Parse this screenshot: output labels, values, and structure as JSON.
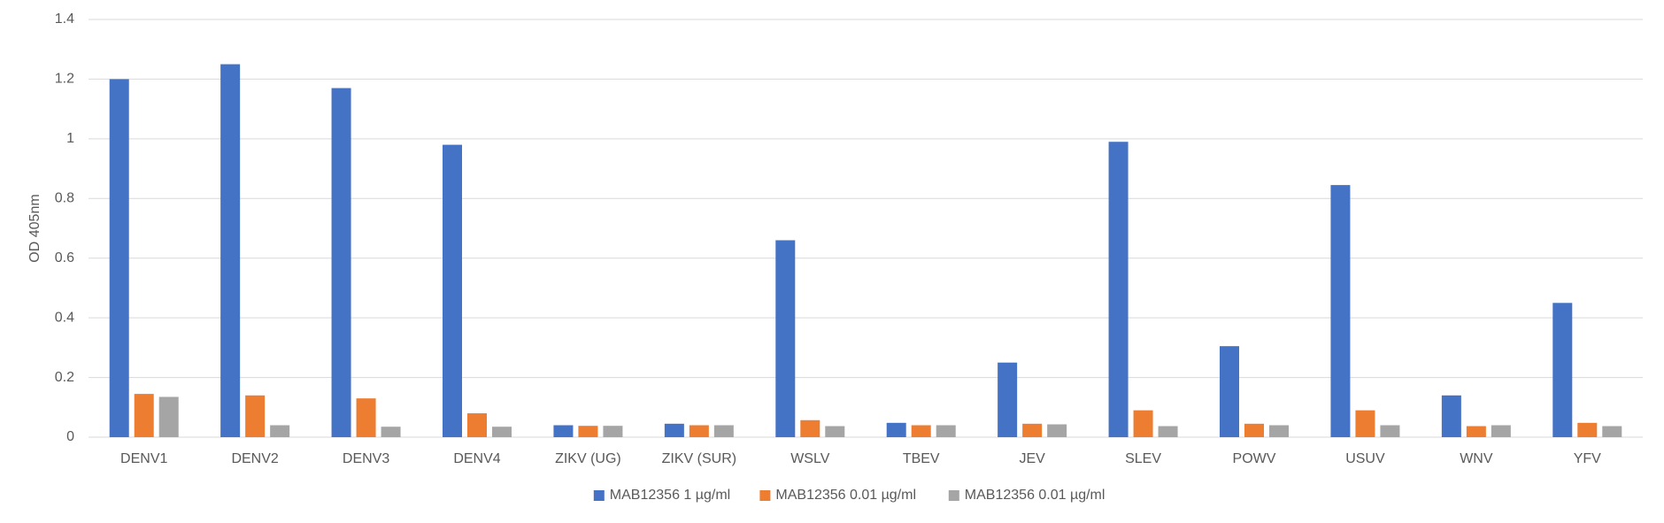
{
  "chart_data": {
    "type": "bar",
    "y_label": "OD 405nm",
    "categories": [
      "DENV1",
      "DENV2",
      "DENV3",
      "DENV4",
      "ZIKV (UG)",
      "ZIKV (SUR)",
      "WSLV",
      "TBEV",
      "JEV",
      "SLEV",
      "POWV",
      "USUV",
      "WNV",
      "YFV"
    ],
    "series": [
      {
        "name": "MAB12356 1 µg/ml",
        "color": "#4472c4",
        "values": [
          1.2,
          1.25,
          1.17,
          0.98,
          0.04,
          0.045,
          0.66,
          0.048,
          0.25,
          0.99,
          0.305,
          0.845,
          0.14,
          0.45
        ]
      },
      {
        "name": "MAB12356 0.01 µg/ml",
        "color": "#ed7d31",
        "values": [
          0.145,
          0.14,
          0.13,
          0.08,
          0.038,
          0.04,
          0.057,
          0.04,
          0.045,
          0.09,
          0.045,
          0.09,
          0.037,
          0.048
        ]
      },
      {
        "name": "MAB12356 0.01 µg/ml",
        "color": "#a5a5a5",
        "values": [
          0.135,
          0.04,
          0.035,
          0.035,
          0.038,
          0.04,
          0.037,
          0.04,
          0.043,
          0.037,
          0.04,
          0.04,
          0.04,
          0.037
        ]
      }
    ],
    "ylim": [
      0,
      1.4
    ],
    "yticks": [
      0,
      0.2,
      0.4,
      0.6,
      0.8,
      1,
      1.2,
      1.4
    ],
    "grid": true,
    "legend": "bottom"
  }
}
